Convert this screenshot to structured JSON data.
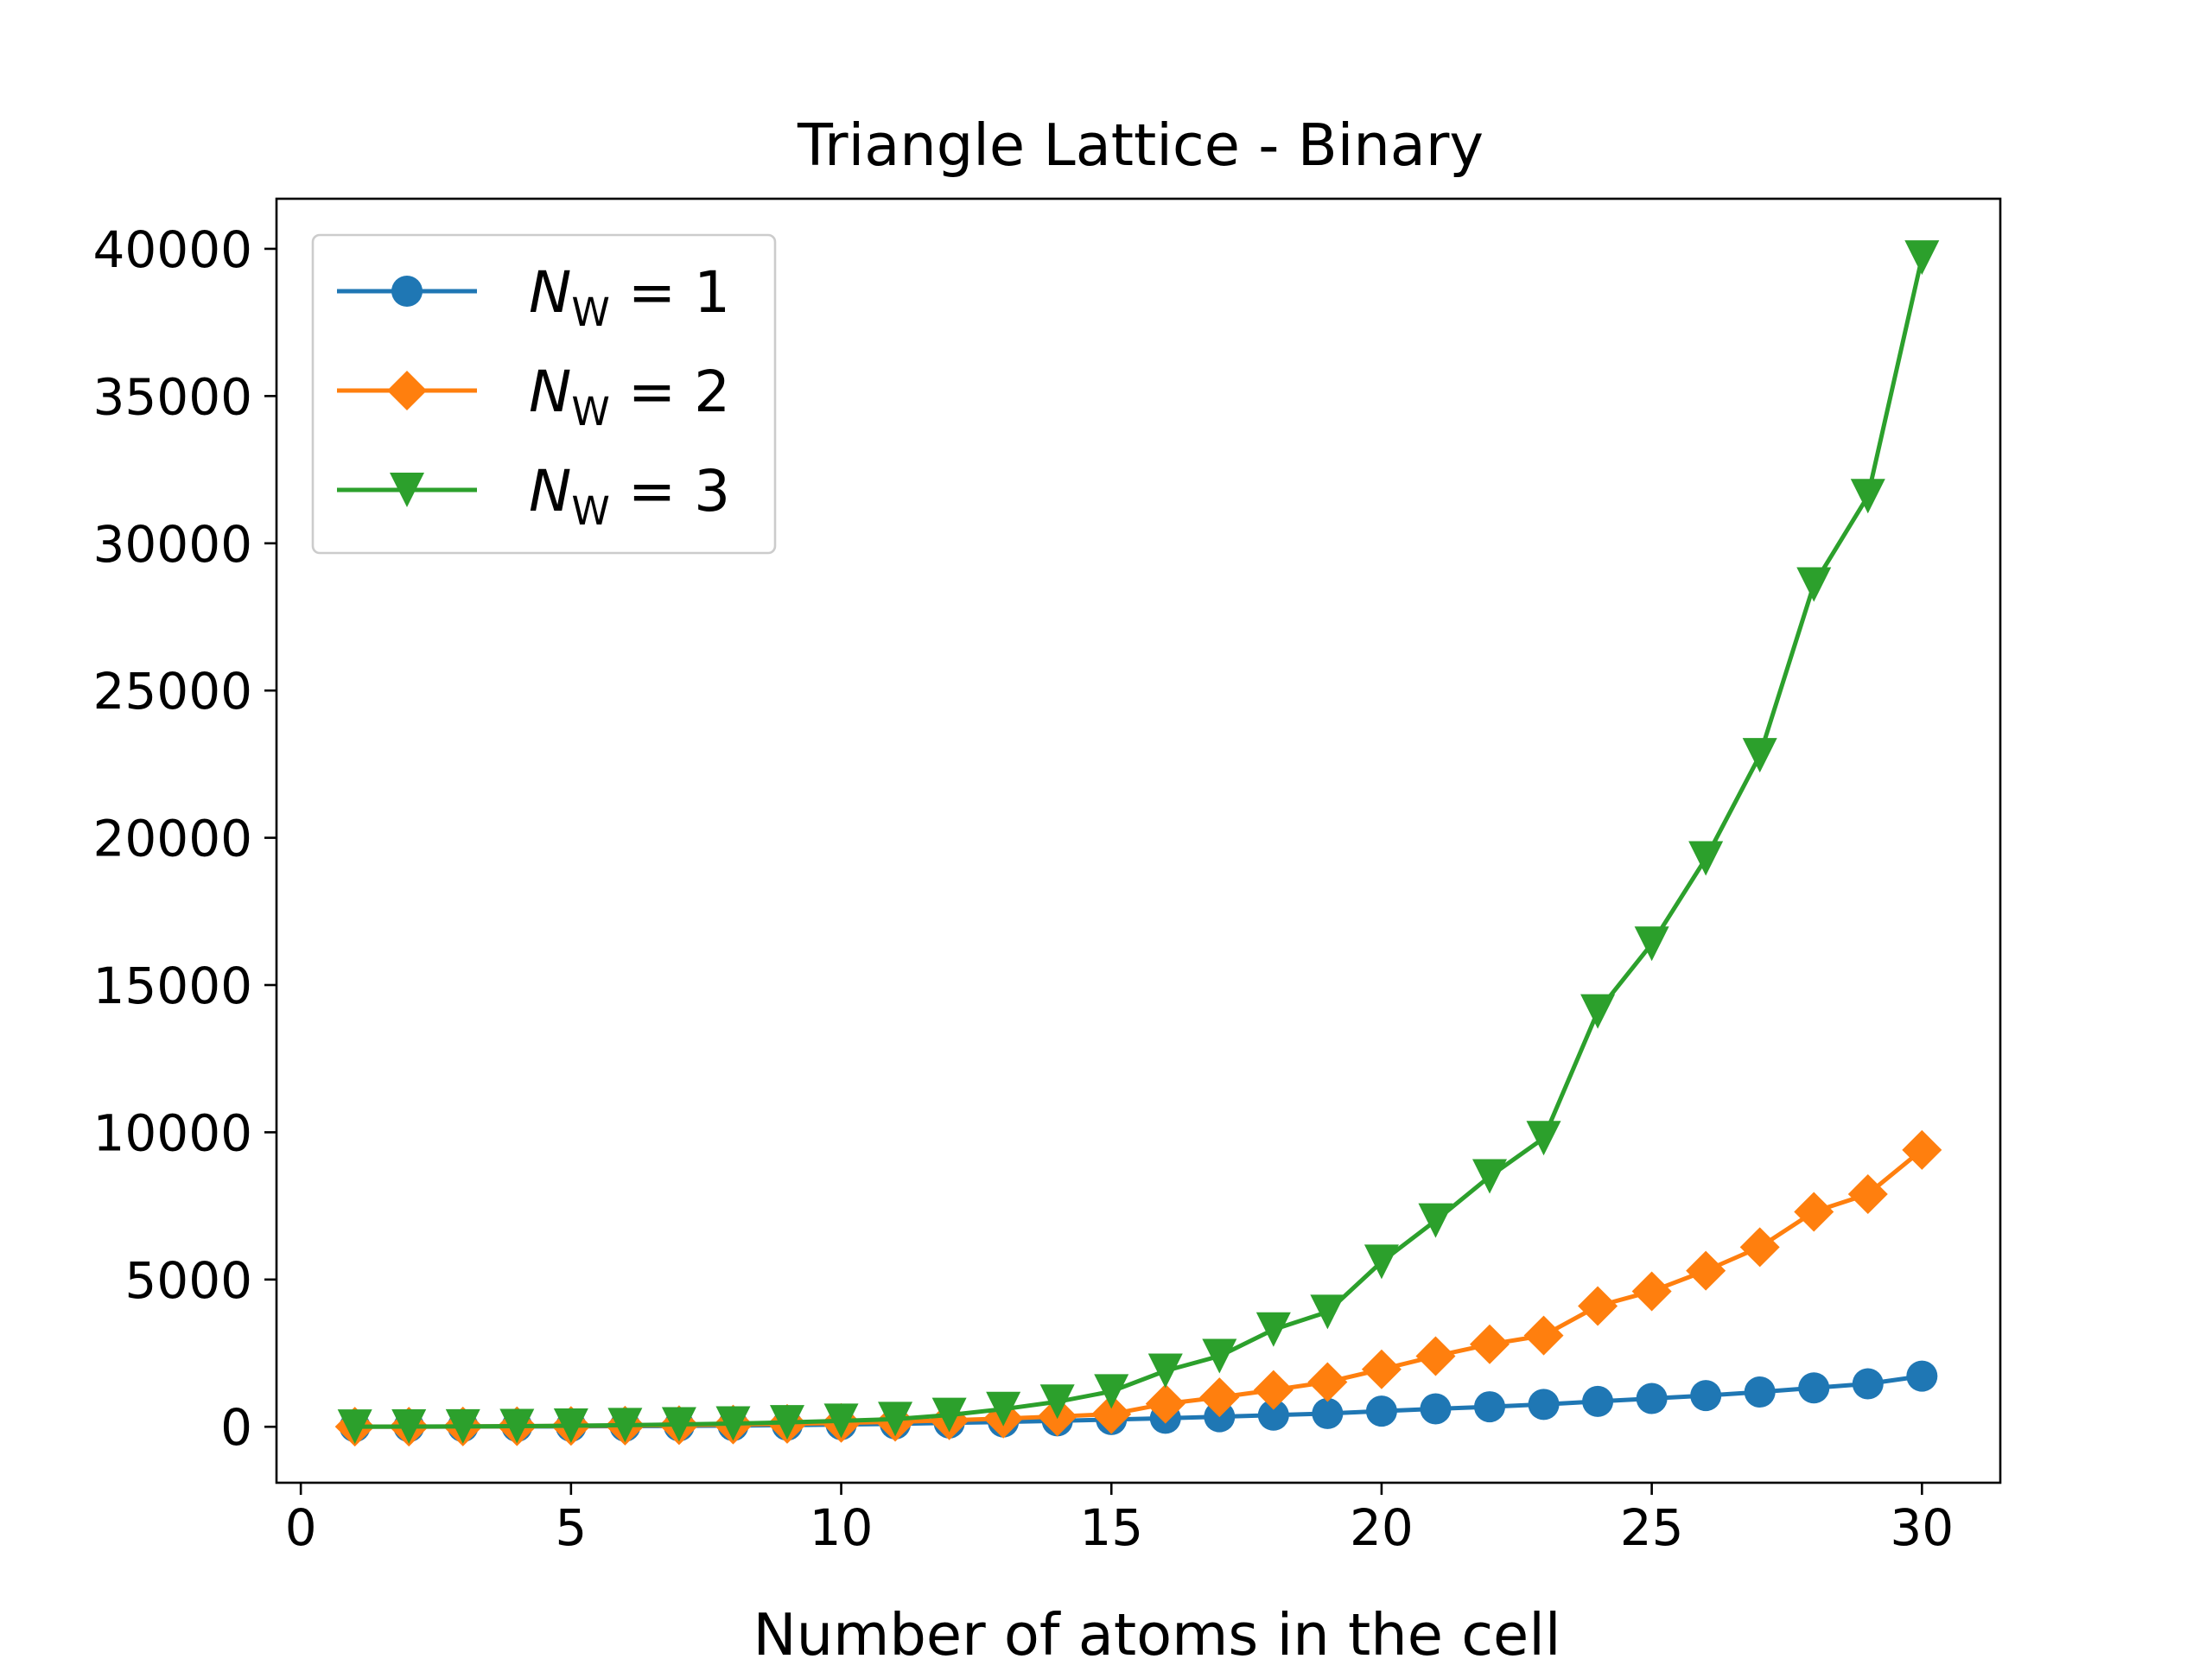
{
  "chart_data": {
    "type": "line",
    "title": "Triangle Lattice - Binary",
    "xlabel": "Number of atoms in the cell",
    "ylabel": "",
    "xlim": [
      -0.45,
      31.45
    ],
    "ylim": [
      -1900,
      41700
    ],
    "xticks": [
      0,
      5,
      10,
      15,
      20,
      25,
      30
    ],
    "yticks": [
      0,
      5000,
      10000,
      15000,
      20000,
      25000,
      30000,
      35000,
      40000
    ],
    "xtick_labels": [
      "0",
      "5",
      "10",
      "15",
      "20",
      "25",
      "30"
    ],
    "ytick_labels": [
      "0",
      "5000",
      "10000",
      "15000",
      "20000",
      "25000",
      "30000",
      "35000",
      "40000"
    ],
    "grid": false,
    "legend_position": "top-left",
    "x": [
      1,
      2,
      3,
      4,
      5,
      6,
      7,
      8,
      9,
      10,
      11,
      12,
      13,
      14,
      15,
      16,
      17,
      18,
      19,
      20,
      21,
      22,
      23,
      24,
      25,
      26,
      27,
      28,
      29,
      30
    ],
    "series": [
      {
        "legend_main": "N",
        "legend_sub": "W",
        "legend_rest": " = 1",
        "color": "#1f77b4",
        "marker": "circle",
        "values": [
          2,
          4,
          6,
          10,
          14,
          20,
          28,
          40,
          55,
          75,
          100,
          130,
          165,
          200,
          245,
          290,
          340,
          395,
          450,
          530,
          610,
          680,
          760,
          860,
          960,
          1060,
          1180,
          1320,
          1460,
          1720
        ]
      },
      {
        "legend_main": "N",
        "legend_sub": "W",
        "legend_rest": " = 2",
        "color": "#ff7f0e",
        "marker": "diamond",
        "values": [
          2,
          5,
          10,
          18,
          28,
          40,
          55,
          75,
          100,
          130,
          170,
          220,
          280,
          350,
          430,
          780,
          1000,
          1250,
          1520,
          1950,
          2400,
          2800,
          3100,
          4100,
          4600,
          5300,
          6100,
          7300,
          7900,
          9400
        ]
      },
      {
        "legend_main": "N",
        "legend_sub": "W",
        "legend_rest": " = 3",
        "color": "#2ca02c",
        "marker": "triangle-down",
        "values": [
          2,
          6,
          12,
          22,
          36,
          55,
          80,
          110,
          150,
          200,
          260,
          400,
          600,
          850,
          1200,
          1900,
          2400,
          3300,
          3900,
          5600,
          7000,
          8500,
          9800,
          14100,
          16400,
          19300,
          22800,
          28600,
          31600,
          39700
        ]
      }
    ]
  }
}
